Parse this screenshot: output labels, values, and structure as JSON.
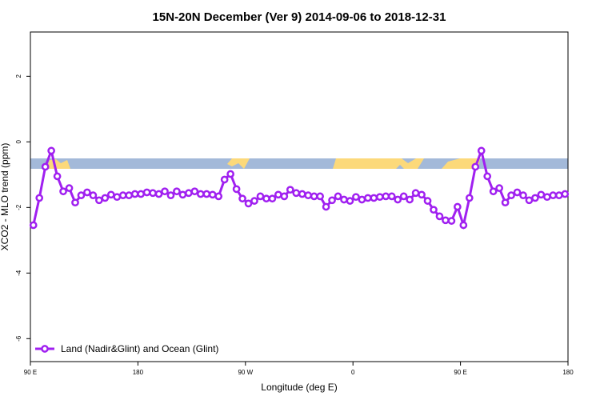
{
  "chart_data": {
    "type": "line",
    "title": "15N-20N December (Ver 9)   2014-09-06 to 2018-12-31",
    "xlabel": "Longitude (deg E)",
    "ylabel": "XCO2 - MLO trend (ppm)",
    "xlim": [
      90,
      540
    ],
    "ylim": [
      -6.7,
      3.35
    ],
    "xticks": [
      {
        "value": 90,
        "label": "90 E"
      },
      180,
      {
        "value": 270,
        "label": "90 W"
      },
      {
        "value": 360,
        "label": "0"
      },
      {
        "value": 450,
        "label": "90 E"
      },
      {
        "value": 540,
        "label": "180"
      }
    ],
    "yticks": [
      -6,
      -4,
      -2,
      0,
      2
    ],
    "legend": "bottom-left",
    "series": [
      {
        "name": "Land (Nadir&Glint) and Ocean (Glint)",
        "color": "#a020f0",
        "x": [
          92.5,
          97.5,
          102.5,
          107.5,
          112.5,
          117.5,
          122.5,
          127.5,
          132.5,
          137.5,
          142.5,
          147.5,
          152.5,
          157.5,
          162.5,
          167.5,
          172.5,
          177.5,
          182.5,
          187.5,
          192.5,
          197.5,
          202.5,
          207.5,
          212.5,
          217.5,
          222.5,
          227.5,
          232.5,
          237.5,
          242.5,
          247.5,
          252.5,
          257.5,
          262.5,
          267.5,
          272.5,
          277.5,
          282.5,
          287.5,
          292.5,
          297.5,
          302.5,
          307.5,
          312.5,
          317.5,
          322.5,
          327.5,
          332.5,
          337.5,
          342.5,
          347.5,
          352.5,
          357.5,
          362.5,
          367.5,
          372.5,
          377.5,
          382.5,
          387.5,
          392.5,
          397.5,
          402.5,
          407.5,
          412.5,
          417.5,
          422.5,
          427.5,
          432.5,
          437.5,
          442.5,
          447.5,
          452.5,
          457.5,
          462.5,
          467.5,
          472.5,
          477.5,
          482.5,
          487.5,
          492.5,
          497.5,
          502.5,
          507.5,
          512.5,
          517.5,
          522.5,
          527.5,
          532.5,
          537.5
        ],
        "values": [
          -2.54,
          -1.71,
          -0.76,
          -0.27,
          -1.05,
          -1.51,
          -1.41,
          -1.85,
          -1.63,
          -1.54,
          -1.63,
          -1.78,
          -1.71,
          -1.61,
          -1.68,
          -1.63,
          -1.63,
          -1.59,
          -1.59,
          -1.54,
          -1.56,
          -1.59,
          -1.51,
          -1.63,
          -1.51,
          -1.61,
          -1.56,
          -1.51,
          -1.59,
          -1.59,
          -1.61,
          -1.66,
          -1.15,
          -0.98,
          -1.44,
          -1.73,
          -1.88,
          -1.8,
          -1.66,
          -1.73,
          -1.73,
          -1.61,
          -1.66,
          -1.46,
          -1.56,
          -1.59,
          -1.63,
          -1.66,
          -1.66,
          -1.98,
          -1.78,
          -1.66,
          -1.76,
          -1.8,
          -1.68,
          -1.76,
          -1.71,
          -1.71,
          -1.68,
          -1.66,
          -1.66,
          -1.76,
          -1.66,
          -1.76,
          -1.56,
          -1.61,
          -1.8,
          -2.07,
          -2.27,
          -2.39,
          -2.41,
          -1.98,
          -2.54,
          -1.71,
          -0.76,
          -0.27,
          -1.05,
          -1.51,
          -1.41,
          -1.85,
          -1.63,
          -1.54,
          -1.63,
          -1.78,
          -1.71,
          -1.61,
          -1.68,
          -1.63,
          -1.63,
          -1.59
        ]
      }
    ]
  }
}
